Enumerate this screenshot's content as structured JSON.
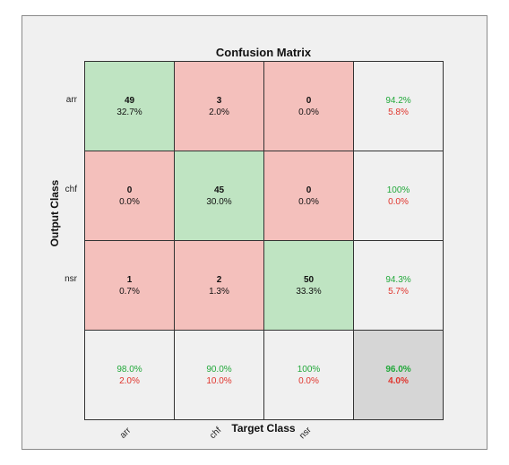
{
  "chart_data": {
    "type": "heatmap",
    "title": "Confusion Matrix",
    "xlabel": "Target Class",
    "ylabel": "Output Class",
    "classes": [
      "arr",
      "chf",
      "nsr"
    ],
    "counts": [
      [
        49,
        3,
        0
      ],
      [
        0,
        45,
        0
      ],
      [
        1,
        2,
        50
      ]
    ],
    "percents": [
      [
        "32.7%",
        "2.0%",
        "0.0%"
      ],
      [
        "0.0%",
        "30.0%",
        "0.0%"
      ],
      [
        "0.7%",
        "1.3%",
        "33.3%"
      ]
    ],
    "row_summary": [
      [
        "94.2%",
        "5.8%"
      ],
      [
        "100%",
        "0.0%"
      ],
      [
        "94.3%",
        "5.7%"
      ]
    ],
    "col_summary": [
      [
        "98.0%",
        "2.0%"
      ],
      [
        "90.0%",
        "10.0%"
      ],
      [
        "100%",
        "0.0%"
      ]
    ],
    "overall": [
      "96.0%",
      "4.0%"
    ],
    "colors": {
      "correct": "#bfe4c2",
      "incorrect": "#f4c0bc",
      "summary": "#f0f0f0",
      "total": "#d6d6d6",
      "good_text": "#22a83a",
      "bad_text": "#e0342c"
    }
  }
}
